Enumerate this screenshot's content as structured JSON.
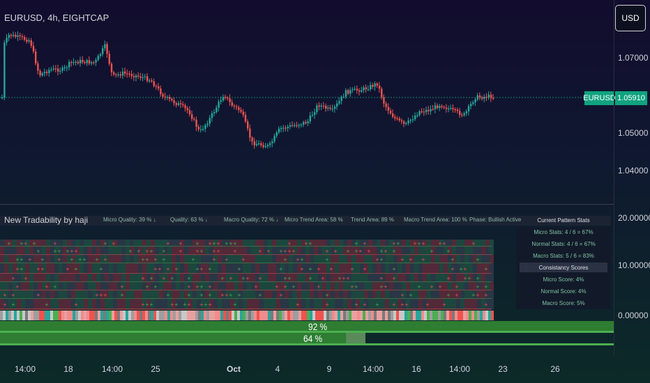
{
  "header": {
    "symbol_title": "EURUSD, 4h, EIGHTCAP",
    "currency": "USD"
  },
  "price_axis": {
    "ticks": [
      "1.07000",
      "1.05000",
      "1.04000"
    ],
    "symbol_badge": "EURUSD",
    "current_price": "1.05910"
  },
  "indicator_axis": {
    "ticks": [
      "20.00000",
      "10.00000",
      "0.00000"
    ]
  },
  "indicator": {
    "title": "New Tradability by haji",
    "header_items": [
      "Micro Quality: 39  % ↓",
      "Quality: 63  % ↓",
      "Macro Quality: 72  % ↓",
      "Micro Trend Area: 58 %",
      "Trend Area: 89 %",
      "Macro Trend Area: 100 %",
      "Phase: Bullish Active"
    ],
    "stats_title": "Current Pattern Stats",
    "stats": [
      "Micro Stats: 4 / 6 = 67%",
      "Normal Stats: 4 / 6 = 67%",
      "Macro Stats: 5 / 6 = 83%"
    ],
    "consistency_title": "Consistancy Scores",
    "scores": [
      "Micro Score: 4%",
      "Normal Score: 4%",
      "Macro Score: 5%"
    ],
    "bar_percent_1": "92 %",
    "bar_percent_2": "64 %"
  },
  "time_axis": {
    "ticks": [
      "14:00",
      "18",
      "14:00",
      "25",
      "Oct",
      "4",
      "9",
      "14:00",
      "16",
      "14:00",
      "23",
      "26"
    ]
  },
  "colors": {
    "bull": "#26a69a",
    "bear": "#ef5350",
    "accent": "#10a37f",
    "bar_green": "#2e7d32"
  }
}
